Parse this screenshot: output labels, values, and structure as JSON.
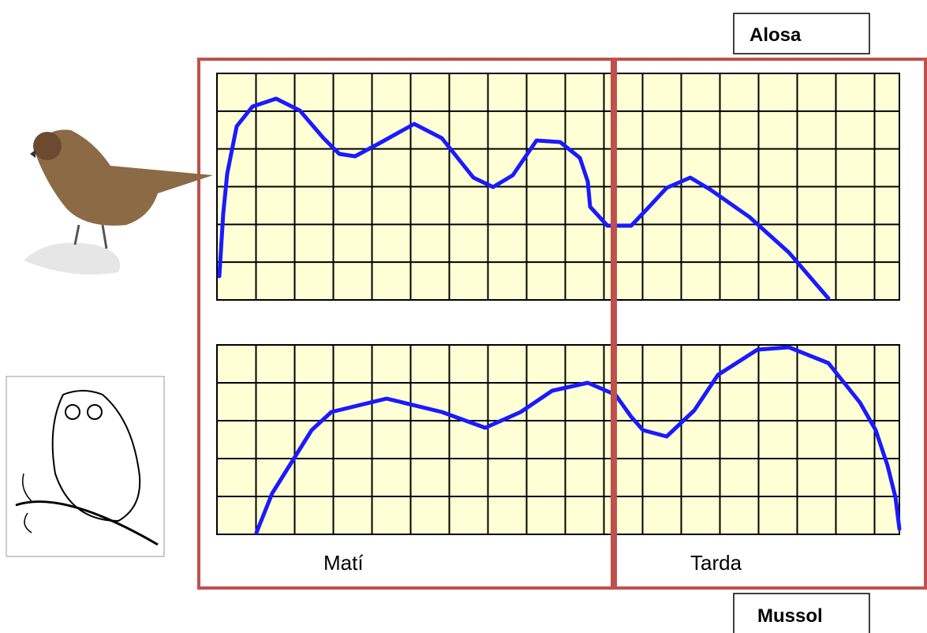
{
  "labels": {
    "top": "Alosa",
    "bottom": "Mussol"
  },
  "periods": [
    "Matí",
    "Tarda"
  ]
}
